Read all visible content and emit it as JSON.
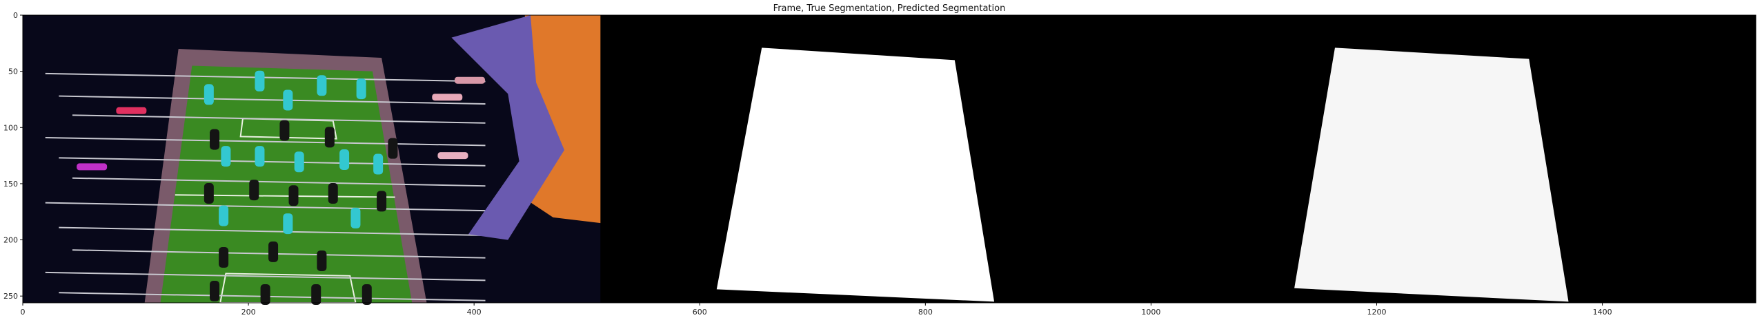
{
  "chart_data": {
    "type": "image",
    "title": "Frame, True Segmentation, Predicted Segmentation",
    "xlabel": "",
    "ylabel": "",
    "xlim": [
      0,
      1536
    ],
    "ylim": [
      256,
      0
    ],
    "x_ticks": [
      0,
      200,
      400,
      600,
      800,
      1000,
      1200,
      1400
    ],
    "y_ticks": [
      0,
      50,
      100,
      150,
      200,
      250
    ],
    "grid": false,
    "panels": [
      {
        "name": "Frame",
        "x_range": [
          0,
          512
        ],
        "content": "foosball table photo"
      },
      {
        "name": "True Segmentation",
        "x_range": [
          512,
          1024
        ],
        "mask_polygon": [
          [
            655,
            29
          ],
          [
            826,
            40
          ],
          [
            861,
            255
          ],
          [
            615,
            244
          ]
        ]
      },
      {
        "name": "Predicted Segmentation",
        "x_range": [
          1024,
          1536
        ],
        "mask_polygon": [
          [
            1163,
            29
          ],
          [
            1335,
            39
          ],
          [
            1370,
            255
          ],
          [
            1127,
            243
          ]
        ]
      }
    ],
    "colors": {
      "background": "#000000",
      "mask": "#ffffff",
      "field": "#3a8a22",
      "table_frame": "#7a5a6a",
      "shirt": "#e0782a",
      "arm": "#6a5ab0"
    }
  }
}
